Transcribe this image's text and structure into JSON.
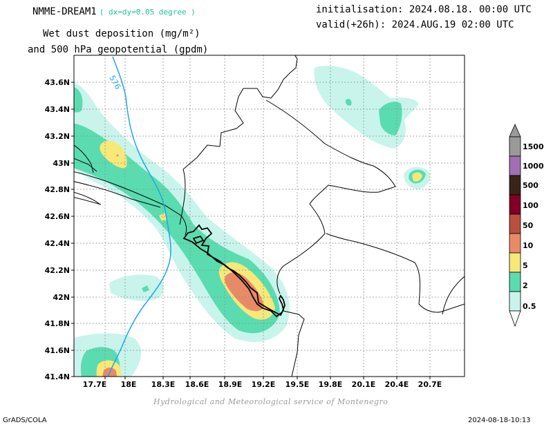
{
  "header": {
    "model_name": "NMME-DREAM1",
    "model_resolution": "( dx=dy=0.05 degree )",
    "title_line1": "Wet dust deposition (mg/m²)",
    "title_line2": "and 500 hPa geopotential (gpdm)",
    "initialisation": "initialisation: 2024.08.18. 00:00 UTC",
    "valid": "valid(+26h): 2024.AUG.19 02:00 UTC"
  },
  "map": {
    "lon_ticks": [
      "17.7E",
      "18E",
      "18.3E",
      "18.6E",
      "18.9E",
      "19.2E",
      "19.5E",
      "19.8E",
      "20.1E",
      "20.4E",
      "20.7E"
    ],
    "lat_ticks": [
      "43.6N",
      "43.4N",
      "43.2N",
      "43N",
      "42.8N",
      "42.6N",
      "42.4N",
      "42.2N",
      "42N",
      "41.8N",
      "41.6N",
      "41.4N"
    ],
    "contour_label": "576",
    "colors": {
      "lightcyan": "#c8f4ec",
      "green": "#5adcb0",
      "yellow": "#f8e878",
      "salmon": "#e88a68",
      "contour": "#1ea6e6"
    }
  },
  "legend": {
    "labels": [
      "1500",
      "1000",
      "500",
      "100",
      "50",
      "10",
      "5",
      "2",
      "0.5"
    ],
    "colors": [
      "#9a9a9a",
      "#a070b0",
      "#3a2418",
      "#800028",
      "#b85040",
      "#e88a68",
      "#f8e878",
      "#5adcb0",
      "#c8f4ec"
    ]
  },
  "footer": {
    "credit": "Hydrological and Meteorological service of Montenegro",
    "software": "GrADS/COLA",
    "timestamp": "2024-08-18-10:13"
  }
}
